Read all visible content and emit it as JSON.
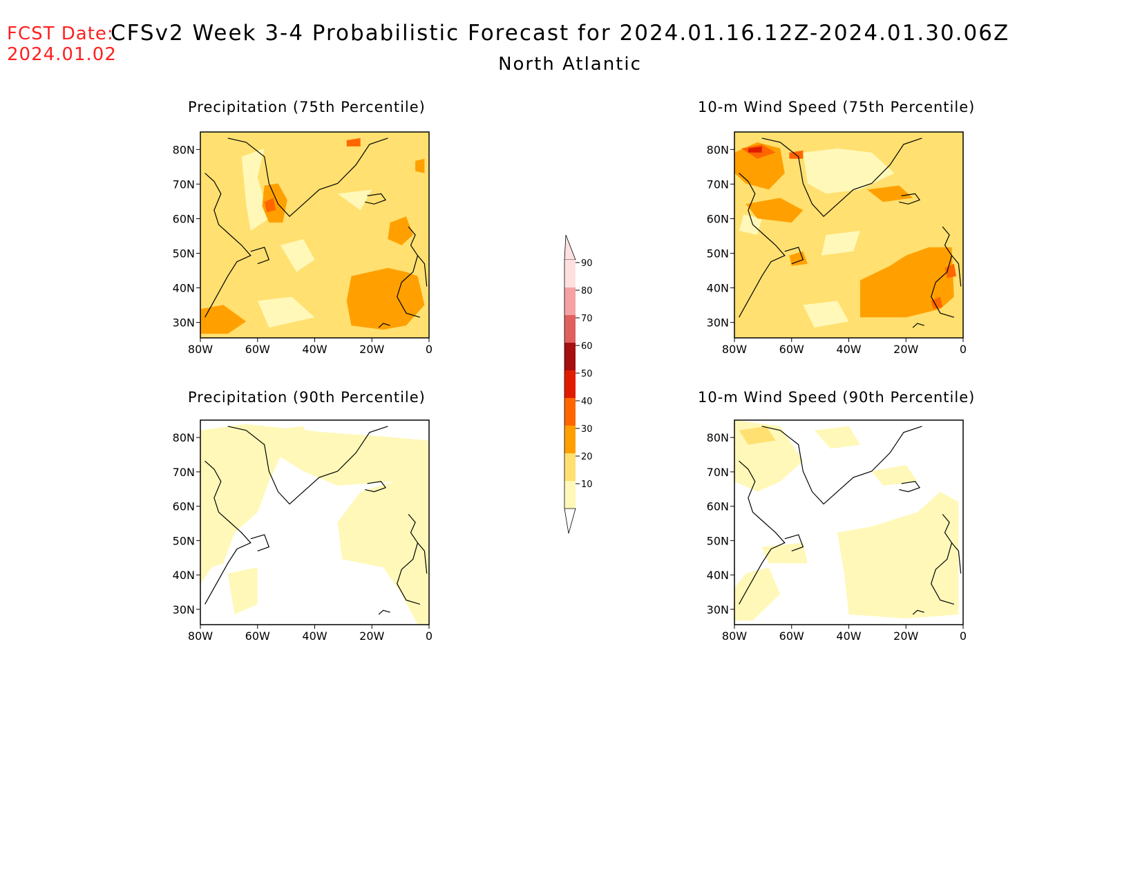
{
  "header": {
    "fcst_label": "FCST Date:",
    "fcst_date": "2024.01.02",
    "title": "CFSv2 Week 3-4 Probabilistic Forecast for 2024.01.16.12Z-2024.01.30.06Z",
    "region": "North Atlantic"
  },
  "panels": [
    {
      "title": "Precipitation (75th Percentile)"
    },
    {
      "title": "10-m Wind Speed (75th Percentile)"
    },
    {
      "title": "Precipitation (90th Percentile)"
    },
    {
      "title": "10-m Wind Speed (90th Percentile)"
    }
  ],
  "axes": {
    "lat_labels": [
      "80N",
      "70N",
      "60N",
      "50N",
      "40N",
      "30N"
    ],
    "lon_labels": [
      "80W",
      "60W",
      "40W",
      "20W",
      "0"
    ]
  },
  "colorbar": {
    "levels": [
      "90",
      "80",
      "70",
      "60",
      "50",
      "40",
      "30",
      "20",
      "10"
    ],
    "colors": [
      "#ffe0e0",
      "#f4a2a2",
      "#e06060",
      "#a50f0f",
      "#e01c00",
      "#ff6600",
      "#ffa000",
      "#ffe070",
      "#fff8b8"
    ]
  },
  "map_colors": {
    "white": "#ffffff",
    "c10": "#fff8b8",
    "c20": "#ffe070",
    "c30": "#ffa000",
    "c40": "#ff6600",
    "c50": "#e01c00",
    "coast": "#000000"
  }
}
